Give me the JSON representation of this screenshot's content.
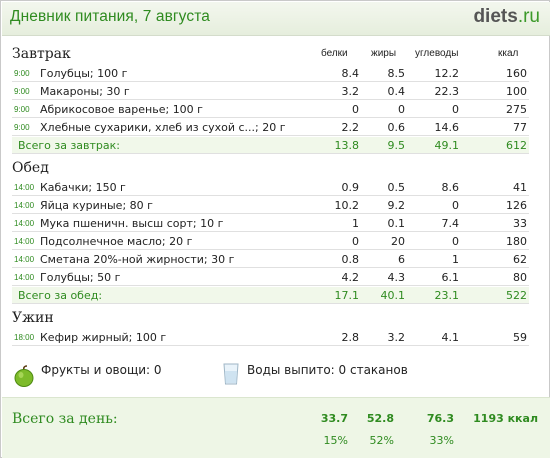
{
  "header": {
    "title": "Дневник питания, 7 августа",
    "logo_main": "diets",
    "logo_tld": ".ru"
  },
  "columns": {
    "protein": "белки",
    "fat": "жиры",
    "carbs": "углеводы",
    "kcal": "ккал"
  },
  "breakfast": {
    "title": "Завтрак",
    "items": [
      {
        "time": "9:00",
        "name": "Голубцы; 100 г",
        "protein": "8.4",
        "fat": "8.5",
        "carbs": "12.2",
        "kcal": "160"
      },
      {
        "time": "9:00",
        "name": "Макароны; 30 г",
        "protein": "3.2",
        "fat": "0.4",
        "carbs": "22.3",
        "kcal": "100"
      },
      {
        "time": "9:00",
        "name": "Абрикосовое варенье; 100 г",
        "protein": "0",
        "fat": "0",
        "carbs": "0",
        "kcal": "275"
      },
      {
        "time": "9:00",
        "name": "Хлебные сухарики, хлеб из сухой с...; 20 г",
        "protein": "2.2",
        "fat": "0.6",
        "carbs": "14.6",
        "kcal": "77"
      }
    ],
    "total": {
      "label": "Всего за завтрак:",
      "protein": "13.8",
      "fat": "9.5",
      "carbs": "49.1",
      "kcal": "612"
    }
  },
  "lunch": {
    "title": "Обед",
    "items": [
      {
        "time": "14:00",
        "name": "Кабачки; 150 г",
        "protein": "0.9",
        "fat": "0.5",
        "carbs": "8.6",
        "kcal": "41"
      },
      {
        "time": "14:00",
        "name": "Яйца куриные; 80 г",
        "protein": "10.2",
        "fat": "9.2",
        "carbs": "0",
        "kcal": "126"
      },
      {
        "time": "14:00",
        "name": "Мука пшеничн. высш сорт; 10 г",
        "protein": "1",
        "fat": "0.1",
        "carbs": "7.4",
        "kcal": "33"
      },
      {
        "time": "14:00",
        "name": "Подсолнечное масло; 20 г",
        "protein": "0",
        "fat": "20",
        "carbs": "0",
        "kcal": "180"
      },
      {
        "time": "14:00",
        "name": "Сметана 20%-ной жирности; 30 г",
        "protein": "0.8",
        "fat": "6",
        "carbs": "1",
        "kcal": "62"
      },
      {
        "time": "14:00",
        "name": "Голубцы; 50 г",
        "protein": "4.2",
        "fat": "4.3",
        "carbs": "6.1",
        "kcal": "80"
      }
    ],
    "total": {
      "label": "Всего за обед:",
      "protein": "17.1",
      "fat": "40.1",
      "carbs": "23.1",
      "kcal": "522"
    }
  },
  "dinner": {
    "title": "Ужин",
    "items": [
      {
        "time": "18:00",
        "name": "Кефир жирный; 100 г",
        "protein": "2.8",
        "fat": "3.2",
        "carbs": "4.1",
        "kcal": "59"
      }
    ]
  },
  "extras": {
    "fruits_label": "Фрукты и овощи: 0",
    "fruits_icon": "apple-icon",
    "water_label": "Воды выпито: 0 стаканов",
    "water_icon": "glass-icon"
  },
  "day_total": {
    "label": "Всего за день:",
    "protein": "33.7",
    "fat": "52.8",
    "carbs": "76.3",
    "kcal": "1193 ккал",
    "protein_pct": "15%",
    "fat_pct": "52%",
    "carbs_pct": "33%"
  },
  "colors": {
    "accent_green": "#2f8b20",
    "total_row_bg": "#f1f8ea",
    "day_bg": "#eef6e6"
  }
}
